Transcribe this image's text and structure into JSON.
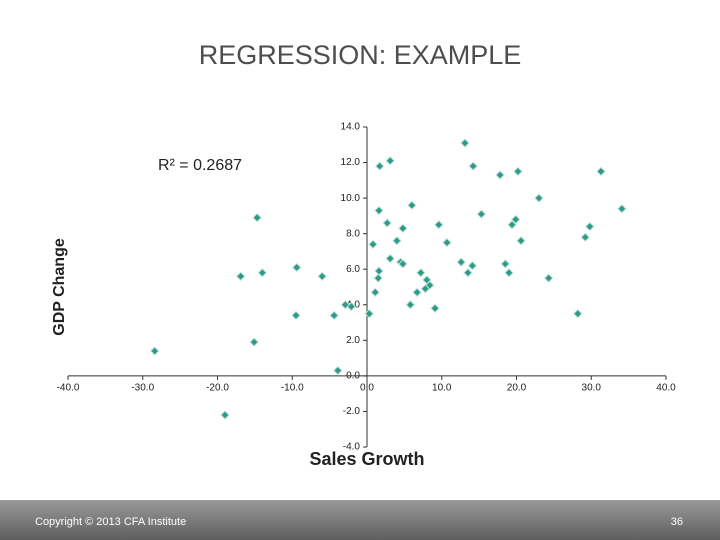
{
  "chart_data": {
    "type": "scatter",
    "title": "REGRESSION: EXAMPLE",
    "x_label": "Sales Growth",
    "y_label": "GDP Change",
    "annotation": "R² = 0.2687",
    "color": "#2f9a86",
    "x": [
      13.1,
      3.1,
      1.7,
      14.2,
      17.8,
      20.2,
      31.3,
      23.0,
      34.1,
      -14.7,
      1.6,
      6.0,
      15.3,
      9.6,
      19.9,
      19.4,
      29.8,
      29.2,
      2.7,
      4.8,
      4.0,
      0.8,
      10.7,
      20.6,
      3.1,
      4.5,
      4.8,
      12.6,
      14.1,
      18.5,
      -9.4,
      -14.0,
      -16.9,
      -6.0,
      1.6,
      1.5,
      13.5,
      19.0,
      24.3,
      7.2,
      8.0,
      8.4,
      7.8,
      6.7,
      1.1,
      -2.9,
      -2.1,
      5.8,
      9.1,
      0.3,
      -4.4,
      -9.5,
      28.2,
      -15.1,
      -28.4,
      -3.9,
      -19.0
    ],
    "values": [
      13.1,
      12.1,
      11.8,
      11.8,
      11.3,
      11.5,
      11.5,
      10.0,
      9.4,
      8.9,
      9.3,
      9.6,
      9.1,
      8.5,
      8.8,
      8.5,
      8.4,
      7.8,
      8.6,
      8.3,
      7.6,
      7.4,
      7.5,
      7.6,
      6.6,
      6.4,
      6.3,
      6.4,
      6.2,
      6.3,
      6.1,
      5.8,
      5.6,
      5.6,
      5.9,
      5.5,
      5.8,
      5.8,
      5.5,
      5.8,
      5.4,
      5.1,
      4.9,
      4.7,
      4.7,
      4.0,
      3.9,
      4.0,
      3.8,
      3.5,
      3.4,
      3.4,
      3.5,
      1.9,
      1.4,
      0.3,
      -2.2
    ],
    "xlim": [
      -40,
      40
    ],
    "xticks": [
      {
        "value": -40,
        "label": "-40.0"
      },
      {
        "value": -30,
        "label": "-30.0"
      },
      {
        "value": -20,
        "label": "-20.0"
      },
      {
        "value": -10,
        "label": "-10.0"
      },
      {
        "value": 0,
        "label": "0.0"
      },
      {
        "value": 10,
        "label": "10.0"
      },
      {
        "value": 20,
        "label": "20.0"
      },
      {
        "value": 30,
        "label": "30.0"
      },
      {
        "value": 40,
        "label": "40.0"
      }
    ],
    "ylim": [
      -4,
      14
    ],
    "yticks": [
      {
        "value": -4,
        "label": "-4.0"
      },
      {
        "value": -2,
        "label": "-2.0"
      },
      {
        "value": 0,
        "label": "0.0"
      },
      {
        "value": 2,
        "label": "2.0"
      },
      {
        "value": 4,
        "label": "4.0"
      },
      {
        "value": 6,
        "label": "6.0"
      },
      {
        "value": 8,
        "label": "8.0"
      },
      {
        "value": 10,
        "label": "10.0"
      },
      {
        "value": 12,
        "label": "12.0"
      },
      {
        "value": 14,
        "label": "14.0"
      }
    ]
  },
  "footer": {
    "copyright": "Copyright © 2013 CFA Institute",
    "page_number": "36"
  }
}
